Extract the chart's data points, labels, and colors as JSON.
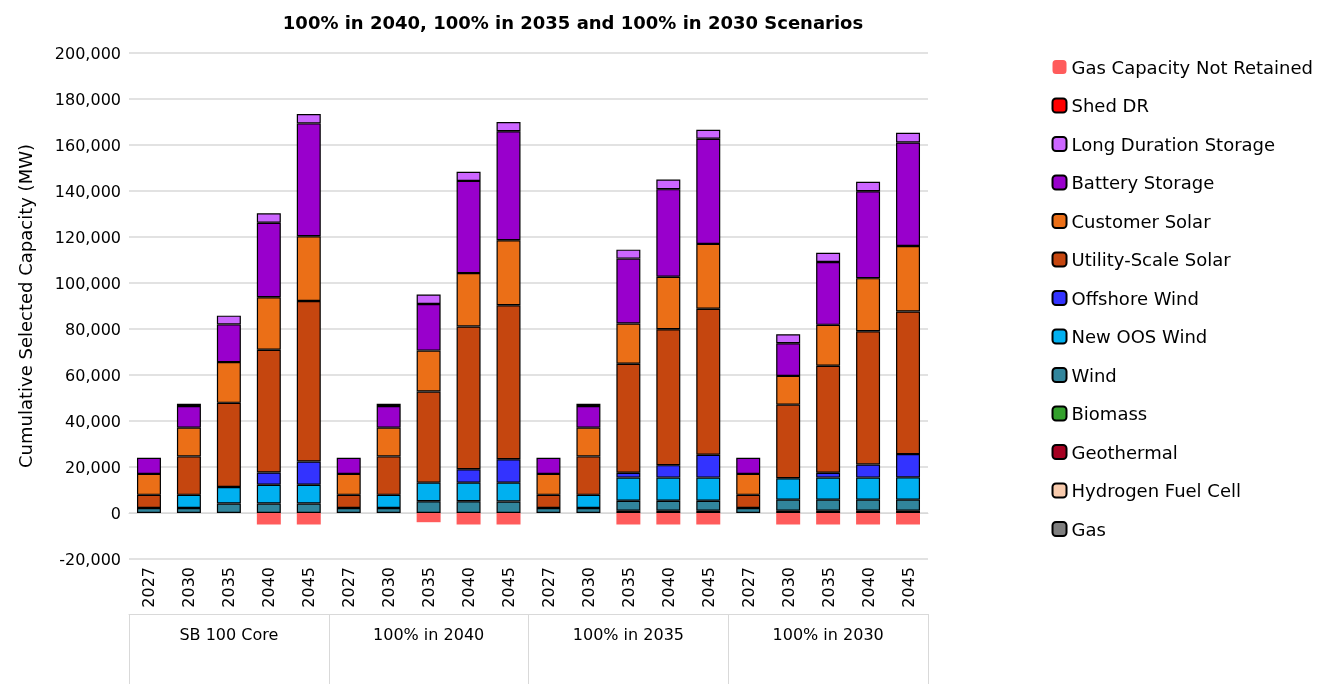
{
  "chart_data": {
    "type": "bar",
    "stacked": true,
    "title": "100% in 2040, 100% in 2035 and 100% in 2030 Scenarios",
    "ylabel": "Cumulative Selected Capacity (MW)",
    "categories": [
      "2027",
      "2030",
      "2035",
      "2040",
      "2045",
      "2027",
      "2030",
      "2035",
      "2040",
      "2045",
      "2027",
      "2030",
      "2035",
      "2040",
      "2045",
      "2027",
      "2030",
      "2035",
      "2040",
      "2045"
    ],
    "annotations": [
      "SB 100 Core",
      "100% in 2040",
      "100% in 2035",
      "100% in 2030"
    ],
    "series": [
      {
        "name": "Gas",
        "color": "#7f7f7f",
        "values": [
          null,
          null,
          null,
          null,
          null,
          null,
          null,
          null,
          null,
          null,
          null,
          null,
          null,
          null,
          null,
          null,
          null,
          null,
          null,
          null
        ]
      },
      {
        "name": "Hydrogen Fuel Cell",
        "color": "#f8cbad",
        "values": [
          null,
          null,
          null,
          null,
          null,
          null,
          null,
          null,
          null,
          null,
          null,
          null,
          null,
          null,
          null,
          null,
          null,
          null,
          null,
          null
        ]
      },
      {
        "name": "Geothermal",
        "color": "#a50021",
        "values": [
          null,
          null,
          null,
          null,
          null,
          null,
          null,
          null,
          null,
          null,
          null,
          null,
          1000,
          1000,
          1000,
          null,
          1000,
          1000,
          1000,
          1000
        ]
      },
      {
        "name": "Biomass",
        "color": "#33a02c",
        "values": [
          null,
          null,
          null,
          null,
          null,
          null,
          null,
          null,
          null,
          null,
          null,
          null,
          null,
          null,
          null,
          null,
          null,
          null,
          null,
          null
        ]
      },
      {
        "name": "Wind",
        "color": "#31859c",
        "values": [
          2200,
          2200,
          4100,
          4100,
          4100,
          2200,
          2200,
          5100,
          5100,
          5000,
          2200,
          2200,
          4300,
          4300,
          4300,
          2200,
          4800,
          4800,
          4800,
          4800
        ]
      },
      {
        "name": "New OOS Wind",
        "color": "#00b0f0",
        "values": [
          null,
          5700,
          7200,
          8200,
          8200,
          null,
          5700,
          8100,
          8100,
          8200,
          null,
          5700,
          10100,
          10100,
          10100,
          null,
          9300,
          9600,
          9600,
          9700
        ]
      },
      {
        "name": "Offshore Wind",
        "color": "#3333ff",
        "values": [
          null,
          null,
          null,
          5300,
          10100,
          null,
          null,
          null,
          5800,
          10200,
          null,
          null,
          2100,
          5400,
          9900,
          null,
          null,
          2100,
          5700,
          10100
        ]
      },
      {
        "name": "Utility-Scale Solar",
        "color": "#c5460f",
        "values": [
          5700,
          16700,
          36600,
          53400,
          69800,
          5700,
          16700,
          39600,
          62100,
          66900,
          5700,
          16700,
          47400,
          59100,
          63500,
          5700,
          32000,
          46500,
          57900,
          62000
        ]
      },
      {
        "name": "Customer Solar",
        "color": "#eb6f17",
        "values": [
          9100,
          12500,
          17700,
          22800,
          28100,
          9100,
          12500,
          17800,
          23200,
          28300,
          9100,
          12500,
          17500,
          22800,
          28200,
          9100,
          12500,
          17800,
          23100,
          28500
        ]
      },
      {
        "name": "Battery Storage",
        "color": "#9900cc",
        "values": [
          7000,
          9400,
          16400,
          32400,
          49100,
          7000,
          9400,
          20300,
          40100,
          47400,
          7000,
          9400,
          28200,
          38100,
          45700,
          7000,
          14200,
          27300,
          37800,
          45000
        ]
      },
      {
        "name": "Long Duration Storage",
        "color": "#cc66ff",
        "values": [
          null,
          1000,
          3800,
          4100,
          4100,
          null,
          1000,
          4100,
          4000,
          4000,
          null,
          1000,
          3900,
          4200,
          3900,
          null,
          3900,
          4000,
          4100,
          4200
        ]
      },
      {
        "name": "Shed DR",
        "color": "#ff0000",
        "values": [
          null,
          null,
          null,
          null,
          null,
          null,
          null,
          null,
          null,
          null,
          null,
          null,
          null,
          null,
          null,
          null,
          null,
          null,
          null,
          null
        ]
      },
      {
        "name": "Gas Capacity Not Retained",
        "color": "#ff5b5b",
        "values": [
          null,
          null,
          null,
          -5000,
          -5000,
          null,
          null,
          -4000,
          -5000,
          -5000,
          null,
          null,
          -5000,
          -5000,
          -5000,
          null,
          -5000,
          -5000,
          -5000,
          -5000
        ]
      }
    ],
    "ylim": [
      -20000,
      200000
    ],
    "yticks": [
      {
        "value": -20000,
        "label": "-20,000"
      },
      0,
      {
        "value": 20000,
        "label": "20,000"
      },
      {
        "value": 40000,
        "label": "40,000"
      },
      {
        "value": 60000,
        "label": "60,000"
      },
      {
        "value": 80000,
        "label": "80,000"
      },
      {
        "value": 100000,
        "label": "100,000"
      },
      {
        "value": 120000,
        "label": "120,000"
      },
      {
        "value": 140000,
        "label": "140,000"
      },
      {
        "value": 160000,
        "label": "160,000"
      },
      {
        "value": 180000,
        "label": "180,000"
      },
      {
        "value": 200000,
        "label": "200,000"
      }
    ],
    "grid": "y",
    "legend": "right"
  }
}
